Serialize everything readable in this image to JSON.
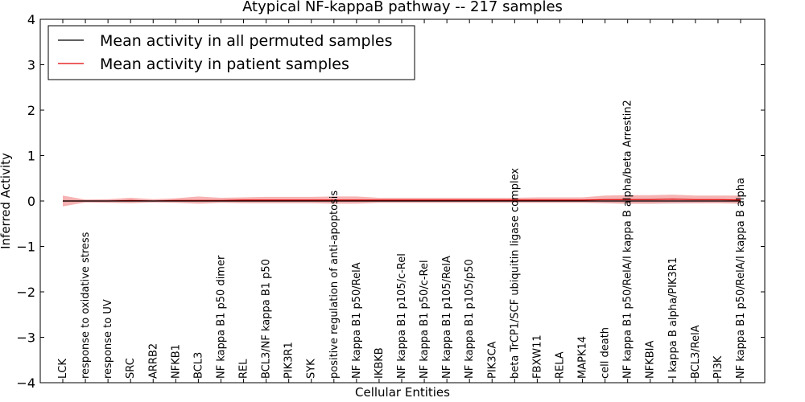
{
  "chart_data": {
    "type": "line",
    "title": "Atypical NF-kappaB pathway -- 217 samples",
    "xlabel": "Cellular Entities",
    "ylabel": "Inferred Activity",
    "ylim": [
      -4,
      4
    ],
    "yticks": [
      -4,
      -3,
      -2,
      -1,
      0,
      1,
      2,
      3,
      4
    ],
    "ytick_labels": [
      "−4",
      "−3",
      "−2",
      "−1",
      "0",
      "1",
      "2",
      "3",
      "4"
    ],
    "legend_position": "top-left",
    "categories": [
      "LCK",
      "response to oxidative stress",
      "response to UV",
      "SRC",
      "ARRB2",
      "NFKB1",
      "BCL3",
      "NF kappa B1 p50 dimer",
      "REL",
      "BCL3/NF kappa B1 p50",
      "PIK3R1",
      "SYK",
      "positive regulation of anti-apoptosis",
      "NF kappa B1 p50/RelA",
      "IKBKB",
      "NF kappa B1 p105/c-Rel",
      "NF kappa B1 p50/c-Rel",
      "NF kappa B1 p105/RelA",
      "NF kappa B1 p105/p50",
      "PIK3CA",
      "beta TrCP1/SCF ubiquitin ligase complex",
      "FBXW11",
      "RELA",
      "MAPK14",
      "cell death",
      "NF kappa B1 p50/RelA/I kappa B alpha/beta Arrestin2",
      "NFKBIA",
      "I kappa B alpha/PIK3R1",
      "BCL3/RelA",
      "PI3K",
      "NF kappa B1 p50/RelA/I kappa B alpha"
    ],
    "series": [
      {
        "name": "Mean activity in all permuted samples",
        "color": "#000000",
        "band_color": "#c8c8d0",
        "values": [
          0,
          0,
          0,
          0,
          0,
          0,
          0,
          0,
          0,
          0,
          0,
          0,
          0,
          0,
          0,
          0,
          0,
          0,
          0,
          0,
          0,
          0,
          0,
          0,
          0,
          0,
          0,
          0,
          0,
          0,
          0
        ],
        "lower": [
          -0.03,
          -0.03,
          -0.03,
          -0.03,
          -0.03,
          -0.03,
          -0.03,
          -0.03,
          -0.03,
          -0.03,
          -0.03,
          -0.03,
          -0.03,
          -0.03,
          -0.03,
          -0.03,
          -0.03,
          -0.03,
          -0.03,
          -0.03,
          -0.03,
          -0.03,
          -0.03,
          -0.03,
          -0.05,
          -0.06,
          -0.06,
          -0.06,
          -0.05,
          -0.04,
          -0.05
        ],
        "upper": [
          0.03,
          0.03,
          0.03,
          0.03,
          0.03,
          0.03,
          0.03,
          0.03,
          0.03,
          0.03,
          0.03,
          0.03,
          0.03,
          0.03,
          0.03,
          0.03,
          0.03,
          0.03,
          0.03,
          0.03,
          0.03,
          0.03,
          0.03,
          0.03,
          0.05,
          0.06,
          0.06,
          0.06,
          0.05,
          0.04,
          0.05
        ]
      },
      {
        "name": "Mean activity in patient samples",
        "color": "#e00000",
        "band_color": "#f08080",
        "values": [
          0.0,
          0.0,
          0.0,
          0.01,
          0.0,
          0.01,
          0.01,
          0.01,
          0.02,
          0.02,
          0.02,
          0.02,
          0.02,
          0.02,
          0.02,
          0.02,
          0.02,
          0.02,
          0.02,
          0.02,
          0.02,
          0.02,
          0.02,
          0.02,
          0.03,
          0.03,
          0.03,
          0.04,
          0.03,
          0.03,
          0.02
        ],
        "lower": [
          -0.12,
          -0.03,
          -0.04,
          -0.05,
          -0.03,
          -0.04,
          -0.06,
          -0.04,
          -0.05,
          -0.05,
          -0.05,
          -0.05,
          -0.06,
          -0.06,
          -0.04,
          -0.04,
          -0.04,
          -0.04,
          -0.04,
          -0.04,
          -0.04,
          -0.04,
          -0.04,
          -0.04,
          -0.05,
          -0.06,
          -0.06,
          -0.05,
          -0.05,
          -0.05,
          -0.06
        ],
        "upper": [
          0.12,
          0.03,
          0.04,
          0.07,
          0.04,
          0.06,
          0.1,
          0.07,
          0.08,
          0.09,
          0.09,
          0.09,
          0.1,
          0.1,
          0.07,
          0.07,
          0.07,
          0.07,
          0.07,
          0.07,
          0.07,
          0.08,
          0.08,
          0.08,
          0.12,
          0.13,
          0.13,
          0.14,
          0.12,
          0.12,
          0.12
        ]
      }
    ]
  }
}
